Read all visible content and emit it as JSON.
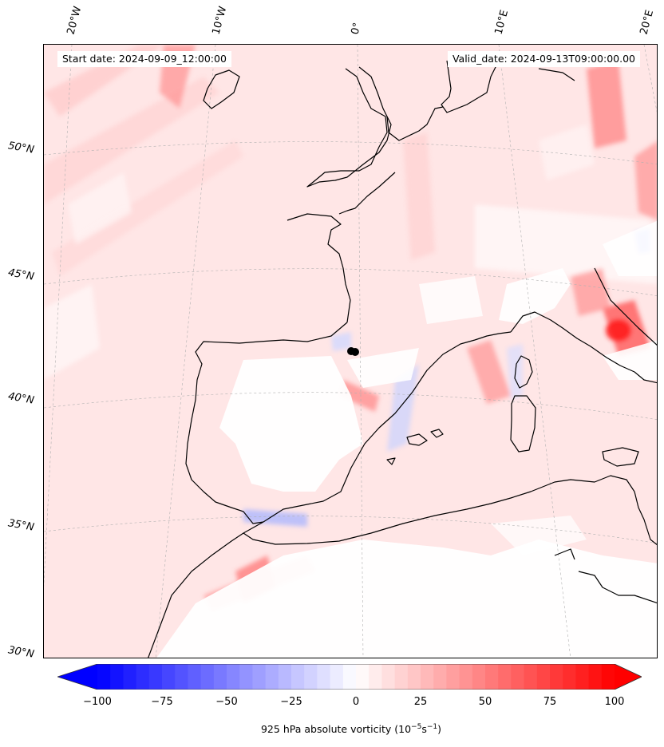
{
  "start_label": "Start date: 2024-09-09_12:00:00",
  "valid_label": "Valid_date: 2024-09-13T09:00:00.00",
  "lon_labels": [
    "20°W",
    "10°W",
    "0°",
    "10°E",
    "20°E"
  ],
  "lat_labels": [
    "50°N",
    "45°N",
    "40°N",
    "35°N",
    "30°N"
  ],
  "colorbar": {
    "label_main": "925 hPa absolute vorticity (10",
    "label_exp1": "−5",
    "label_mid": "s",
    "label_exp2": "−1",
    "label_end": ")",
    "ticks": [
      "−100",
      "−75",
      "−50",
      "−25",
      "0",
      "25",
      "50",
      "75",
      "100"
    ],
    "min": -100,
    "max": 100,
    "min_color": "#0000ff",
    "mid_color": "#ffffff",
    "max_color": "#ff0000"
  },
  "colors": {
    "coastline": "#000000",
    "field_base": "#ffe8e8",
    "gridline": "#b0b0b0"
  }
}
